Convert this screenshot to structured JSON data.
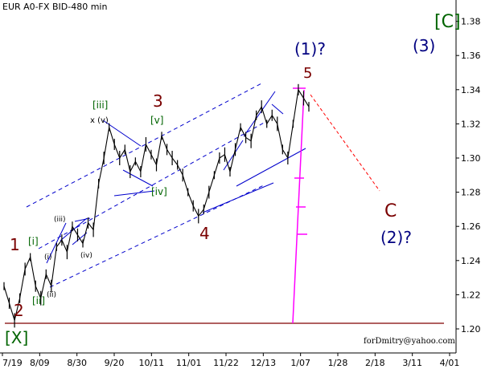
{
  "header": {
    "symbol_label": "EUR A0-FX BID-480 min"
  },
  "credit": "forDmitry@yahoo.com",
  "colors": {
    "price": "#000000",
    "channel": "#0000cc",
    "label_red": "#7a0000",
    "label_blue": "#000080",
    "label_green": "#006400",
    "fib_line": "#ff00ff",
    "support_line": "#800000",
    "forecast": "#ff0000"
  },
  "chart_data": {
    "type": "line",
    "title": "",
    "xlabel": "",
    "ylabel": "",
    "x_ticks": [
      "7/19",
      "8/09",
      "8/30",
      "9/20",
      "10/11",
      "11/01",
      "11/22",
      "12/13",
      "1/07",
      "1/28",
      "2/18",
      "3/11",
      "4/01"
    ],
    "y_ticks": [
      "1.20",
      "1.22",
      "1.24",
      "1.26",
      "1.28",
      "1.30",
      "1.32",
      "1.34",
      "1.36",
      "1.38"
    ],
    "ylim": [
      1.195,
      1.387
    ],
    "series": [
      {
        "values": [
          1.225,
          1.215,
          1.205,
          1.218,
          1.235,
          1.242,
          1.225,
          1.218,
          1.232,
          1.225,
          1.248,
          1.252,
          1.245,
          1.26,
          1.255,
          1.25,
          1.262,
          1.258,
          1.285,
          1.3,
          1.318,
          1.308,
          1.3,
          1.305,
          1.292,
          1.298,
          1.292,
          1.308,
          1.302,
          1.296,
          1.313,
          1.305,
          1.3,
          1.296,
          1.29,
          1.28,
          1.272,
          1.266,
          1.27,
          1.28,
          1.29,
          1.3,
          1.302,
          1.292,
          1.305,
          1.318,
          1.312,
          1.31,
          1.325,
          1.33,
          1.32,
          1.325,
          1.32,
          1.305,
          1.3,
          1.32,
          1.34,
          1.335,
          1.33
        ]
      }
    ],
    "annotations": [
      {
        "text": "[C]",
        "color": "green"
      },
      {
        "text": "(3)",
        "color": "blue"
      },
      {
        "text": "(1)?",
        "color": "blue"
      },
      {
        "text": "5",
        "color": "red"
      },
      {
        "text": "[iii]",
        "color": "green"
      },
      {
        "text": "x (v)",
        "color": "black"
      },
      {
        "text": "3",
        "color": "red"
      },
      {
        "text": "[v]",
        "color": "green"
      },
      {
        "text": "[iv]",
        "color": "green"
      },
      {
        "text": "(iii)",
        "color": "black"
      },
      {
        "text": "1",
        "color": "red"
      },
      {
        "text": "[i]",
        "color": "green"
      },
      {
        "text": "(i)",
        "color": "black"
      },
      {
        "text": "(iv)",
        "color": "black"
      },
      {
        "text": "4",
        "color": "red"
      },
      {
        "text": "(ii)",
        "color": "black"
      },
      {
        "text": "[ii]",
        "color": "green"
      },
      {
        "text": "2",
        "color": "red"
      },
      {
        "text": "[X]",
        "color": "green"
      },
      {
        "text": "C",
        "color": "red"
      },
      {
        "text": "(2)?",
        "color": "blue"
      }
    ]
  }
}
